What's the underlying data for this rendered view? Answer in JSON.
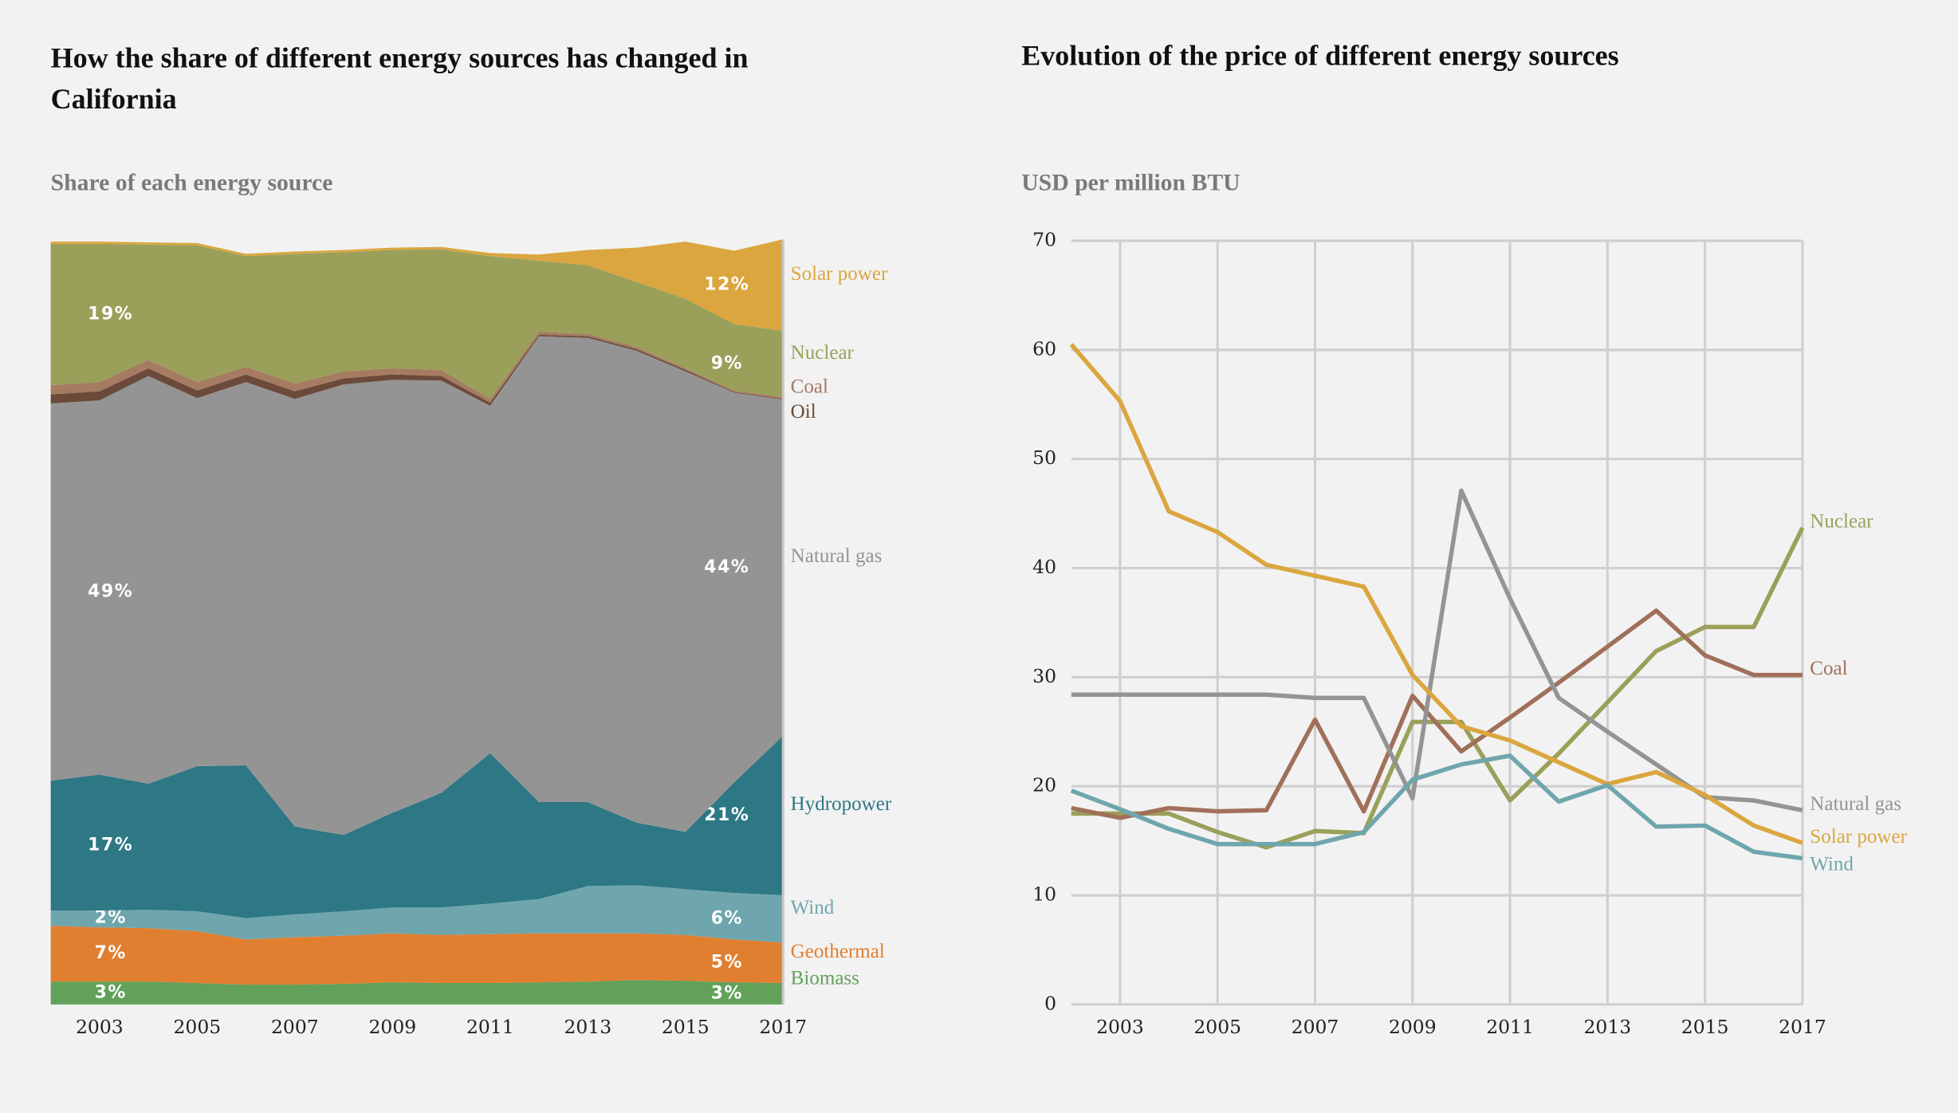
{
  "chart_data": [
    {
      "type": "area",
      "stacked": true,
      "title": "How the share of different energy sources has changed in California",
      "subtitle": "Share of each energy source",
      "x": [
        2002,
        2003,
        2004,
        2005,
        2006,
        2007,
        2008,
        2009,
        2010,
        2011,
        2012,
        2013,
        2014,
        2015,
        2016,
        2017
      ],
      "xlim": [
        2002,
        2017
      ],
      "xticks": [
        2003,
        2005,
        2007,
        2009,
        2011,
        2013,
        2015,
        2017
      ],
      "ylim": [
        0,
        100
      ],
      "series": [
        {
          "name": "Biomass",
          "color": "#62a15a",
          "values": [
            3,
            3,
            3,
            2.8,
            2.6,
            2.6,
            2.7,
            2.9,
            2.8,
            2.8,
            2.9,
            3,
            3.2,
            3.1,
            2.9,
            2.8
          ],
          "value_labels": [
            "3%",
            null,
            null,
            null,
            null,
            null,
            null,
            null,
            null,
            null,
            null,
            null,
            null,
            null,
            null,
            "3%"
          ]
        },
        {
          "name": "Geothermal",
          "color": "#e07f30",
          "values": [
            7.3,
            7.1,
            7,
            6.8,
            5.9,
            6.2,
            6.3,
            6.4,
            6.3,
            6.4,
            6.4,
            6.3,
            6.1,
            6,
            5.6,
            5.3
          ],
          "value_labels": [
            "7%",
            null,
            null,
            null,
            null,
            null,
            null,
            null,
            null,
            null,
            null,
            null,
            null,
            null,
            null,
            "5%"
          ]
        },
        {
          "name": "Wind",
          "color": "#6fa6ad",
          "values": [
            2,
            2.2,
            2.4,
            2.6,
            2.8,
            3,
            3.2,
            3.4,
            3.6,
            4,
            4.5,
            6.2,
            6.3,
            6,
            6.1,
            6.2
          ],
          "value_labels": [
            "2%",
            null,
            null,
            null,
            null,
            null,
            null,
            null,
            null,
            null,
            null,
            null,
            null,
            null,
            null,
            "6%"
          ]
        },
        {
          "name": "Hydropower",
          "color": "#2e7785",
          "values": [
            17,
            17.8,
            16.5,
            19,
            20,
            11.5,
            10,
            12.4,
            15,
            19.7,
            12.7,
            11,
            8.2,
            7.5,
            14.5,
            20.9
          ],
          "value_labels": [
            "17%",
            null,
            null,
            null,
            null,
            null,
            null,
            null,
            null,
            null,
            null,
            null,
            null,
            null,
            null,
            "21%"
          ]
        },
        {
          "name": "Natural gas",
          "color": "#949494",
          "values": [
            49.4,
            49,
            53.4,
            48.2,
            50.2,
            56,
            59,
            56.7,
            54,
            45.5,
            61,
            60.8,
            61.8,
            60.3,
            51,
            44
          ],
          "value_labels": [
            "49%",
            null,
            null,
            null,
            null,
            null,
            null,
            null,
            null,
            null,
            null,
            null,
            null,
            null,
            null,
            "44%"
          ]
        },
        {
          "name": "Oil",
          "color": "#6b4a3a",
          "values": [
            1.2,
            1.2,
            1,
            1,
            1,
            1,
            0.8,
            0.7,
            0.6,
            0.4,
            0.2,
            0.2,
            0.2,
            0.2,
            0.1,
            0.1
          ]
        },
        {
          "name": "Coal",
          "color": "#a57b62",
          "values": [
            1.2,
            1.2,
            1.1,
            1.1,
            1,
            1,
            0.9,
            0.8,
            0.8,
            0.5,
            0.4,
            0.3,
            0.3,
            0.2,
            0.2,
            0.2
          ]
        },
        {
          "name": "Nuclear",
          "color": "#9aa05a",
          "values": [
            18.5,
            18.1,
            15.1,
            17.9,
            14.5,
            17,
            15.6,
            15.5,
            15.8,
            18.7,
            9.3,
            9,
            8.5,
            9.1,
            8.7,
            8.7
          ],
          "value_labels": [
            "19%",
            null,
            null,
            null,
            null,
            null,
            null,
            null,
            null,
            null,
            null,
            null,
            null,
            null,
            null,
            "9%"
          ]
        },
        {
          "name": "Solar power",
          "color": "#dba63f",
          "values": [
            0.3,
            0.3,
            0.3,
            0.3,
            0.3,
            0.3,
            0.3,
            0.3,
            0.3,
            0.4,
            0.8,
            2,
            4.5,
            7.5,
            9.6,
            12
          ],
          "value_labels": [
            null,
            null,
            null,
            null,
            null,
            null,
            null,
            null,
            null,
            null,
            null,
            null,
            null,
            null,
            null,
            "12%"
          ]
        }
      ]
    },
    {
      "type": "line",
      "title": "Evolution of the price of different energy sources",
      "subtitle": "USD per million BTU",
      "x": [
        2002,
        2003,
        2004,
        2005,
        2006,
        2007,
        2008,
        2009,
        2010,
        2011,
        2012,
        2013,
        2014,
        2015,
        2016,
        2017
      ],
      "xlim": [
        2002,
        2017
      ],
      "xticks": [
        2003,
        2005,
        2007,
        2009,
        2011,
        2013,
        2015,
        2017
      ],
      "ylim": [
        0,
        70
      ],
      "yticks": [
        0,
        10,
        20,
        30,
        40,
        50,
        60,
        70
      ],
      "grid": true,
      "series": [
        {
          "name": "Nuclear",
          "color": "#9aa05a",
          "values": [
            17.5,
            17.5,
            17.5,
            15.8,
            14.4,
            15.9,
            15.7,
            25.9,
            25.9,
            18.7,
            23,
            27.7,
            32.4,
            34.6,
            34.6,
            43.7
          ]
        },
        {
          "name": "Coal",
          "color": "#a0705a",
          "values": [
            18,
            17.1,
            18,
            17.7,
            17.8,
            26.1,
            17.7,
            28.3,
            23.2,
            26.3,
            29.5,
            32.8,
            36.1,
            32,
            30.2,
            30.2
          ]
        },
        {
          "name": "Natural gas",
          "color": "#949494",
          "values": [
            28.4,
            28.4,
            28.4,
            28.4,
            28.4,
            28.1,
            28.1,
            18.9,
            47.1,
            37.2,
            28.1,
            25,
            22,
            19,
            18.7,
            17.8
          ]
        },
        {
          "name": "Solar power",
          "color": "#dba63f",
          "values": [
            60.5,
            55.3,
            45.2,
            43.3,
            40.3,
            39.3,
            38.3,
            30.2,
            25.5,
            24.2,
            22.2,
            20.2,
            21.3,
            19.2,
            16.4,
            14.8
          ]
        },
        {
          "name": "Wind",
          "color": "#6fa6ad",
          "values": [
            19.6,
            17.9,
            16.1,
            14.7,
            14.7,
            14.7,
            15.8,
            20.6,
            22,
            22.8,
            18.6,
            20.1,
            16.3,
            16.4,
            14,
            13.4
          ]
        }
      ]
    }
  ]
}
